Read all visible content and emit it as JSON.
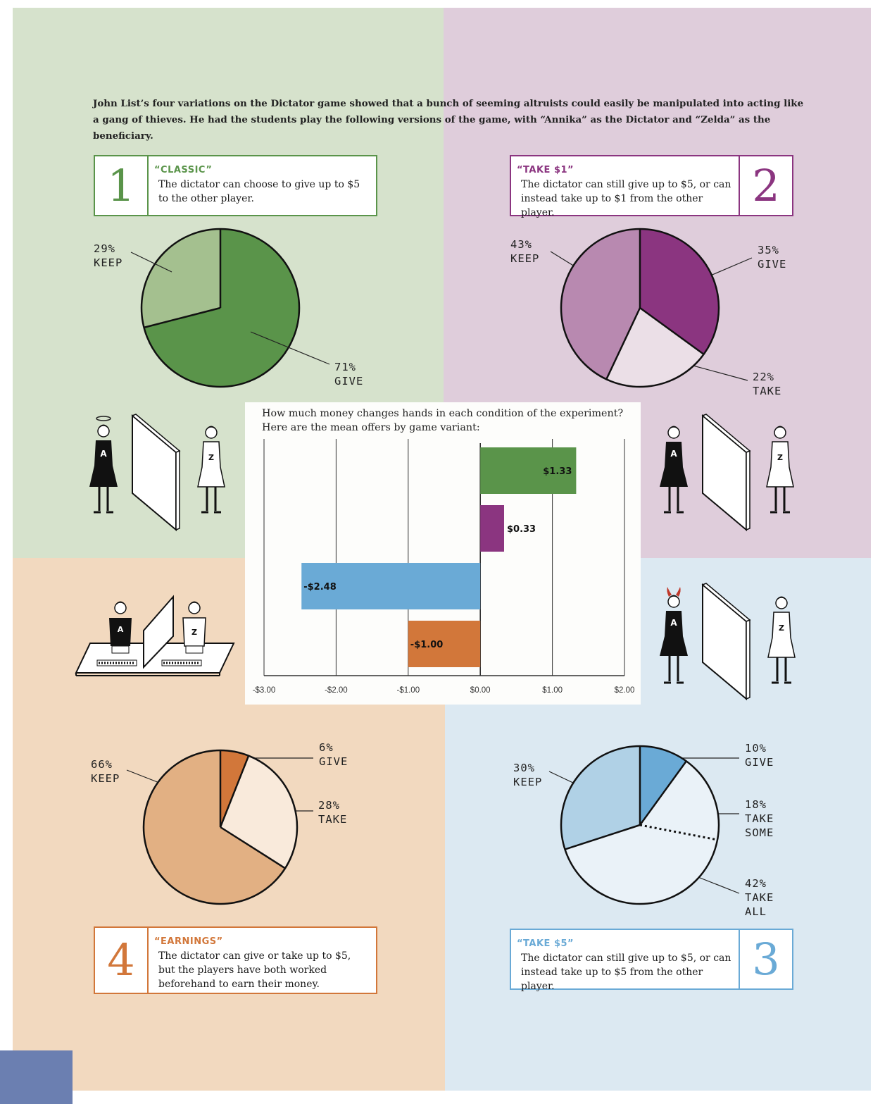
{
  "intro": "John List’s four variations on the Dictator game showed that a bunch of seeming altruists could easily be manipulated into acting like a gang of thieves. He had the students play the following versions of the game, with “Annika” as the Dictator and “Zelda” as the beneficiary.",
  "colors": {
    "green_bg": "#d6e2cc",
    "purple_bg": "#dfcddb",
    "orange_bg": "#f2d9bf",
    "blue_bg": "#dce9f2",
    "green": "#5a944a",
    "purple": "#8b3580",
    "orange": "#d2773a",
    "blue": "#6aaad6"
  },
  "variants": [
    {
      "number": "1",
      "title": "“CLASSIC”",
      "desc": "The dictator can choose to give up to $5 to the other player.",
      "color": "#5a944a"
    },
    {
      "number": "2",
      "title": "“TAKE $1”",
      "desc": "The dictator can still give up to $5, or can instead take up to $1 from the other player.",
      "color": "#8b3580"
    },
    {
      "number": "3",
      "title": "“TAKE $5”",
      "desc": "The dictator can still give up to $5,  or can instead take up to $5 from the other player.",
      "color": "#6aaad6"
    },
    {
      "number": "4",
      "title": "“EARNINGS”",
      "desc": "The dictator can give or take up to $5, but the players have both worked beforehand to earn their money.",
      "color": "#d2773a"
    }
  ],
  "chart_data": [
    {
      "type": "pie",
      "variant": "1",
      "slices": [
        {
          "pct": "71%",
          "label": "GIVE",
          "value": 71,
          "color": "#5a944a"
        },
        {
          "pct": "29%",
          "label": "KEEP",
          "value": 29,
          "color": "#a4c08f"
        }
      ]
    },
    {
      "type": "pie",
      "variant": "2",
      "slices": [
        {
          "pct": "35%",
          "label": "GIVE",
          "value": 35,
          "color": "#8b3580"
        },
        {
          "pct": "22%",
          "label": "TAKE",
          "value": 22,
          "color": "#ebdfe7"
        },
        {
          "pct": "43%",
          "label": "KEEP",
          "value": 43,
          "color": "#b889b0"
        }
      ]
    },
    {
      "type": "pie",
      "variant": "3",
      "slices": [
        {
          "pct": "10%",
          "label": "GIVE",
          "value": 10,
          "color": "#6aaad6"
        },
        {
          "pct": "18%",
          "label": "TAKE\nSOME",
          "value": 18,
          "color": "#eaf2f8"
        },
        {
          "pct": "42%",
          "label": "TAKE\nALL",
          "value": 42,
          "color": "#eaf2f8"
        },
        {
          "pct": "30%",
          "label": "KEEP",
          "value": 30,
          "color": "#b0d1e6"
        }
      ]
    },
    {
      "type": "pie",
      "variant": "4",
      "slices": [
        {
          "pct": "6%",
          "label": "GIVE",
          "value": 6,
          "color": "#d2773a"
        },
        {
          "pct": "28%",
          "label": "TAKE",
          "value": 28,
          "color": "#f9eadb"
        },
        {
          "pct": "66%",
          "label": "KEEP",
          "value": 66,
          "color": "#e2b083"
        }
      ]
    },
    {
      "type": "bar",
      "orientation": "horizontal",
      "title": "How much money changes hands in each condition of the experiment? Here are the mean offers by game variant:",
      "bars": [
        {
          "value": 1.33,
          "label": "$1.33",
          "color": "#5a944a"
        },
        {
          "value": 0.33,
          "label": "$0.33",
          "color": "#8b3580"
        },
        {
          "value": -2.48,
          "label": "-$2.48",
          "color": "#6aaad6"
        },
        {
          "value": -1.0,
          "label": "-$1.00",
          "color": "#d2773a"
        }
      ],
      "xlim": [
        -3,
        2
      ],
      "xticks": [
        -3,
        -2,
        -1,
        0,
        1,
        2
      ],
      "xtick_labels": [
        "-$3.00",
        "-$2.00",
        "-$1.00",
        "$0.00",
        "$1.00",
        "$2.00"
      ],
      "grid": true
    }
  ],
  "figures": {
    "dictator_letter": "A",
    "beneficiary_letter": "Z"
  }
}
